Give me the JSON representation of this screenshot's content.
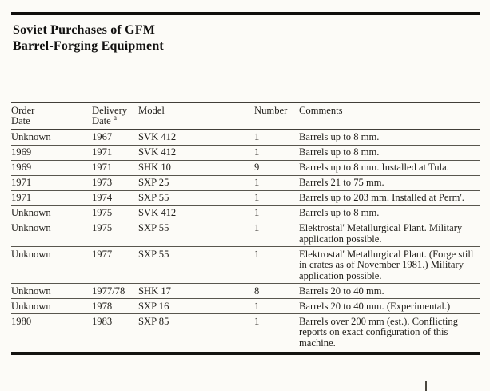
{
  "page": {
    "title_line1": "Soviet Purchases of GFM",
    "title_line2": "Barrel-Forging Equipment"
  },
  "table": {
    "headers": [
      {
        "key": "order-date",
        "lines": [
          "Order",
          "Date"
        ]
      },
      {
        "key": "delivery-date",
        "lines": [
          "Delivery",
          "Date"
        ],
        "superscript": "a"
      },
      {
        "key": "model",
        "lines": [
          "Model"
        ]
      },
      {
        "key": "number",
        "lines": [
          "Number"
        ]
      },
      {
        "key": "comments",
        "lines": [
          "Comments"
        ]
      }
    ],
    "rows": [
      {
        "order_date": "Unknown",
        "delivery_date": "1967",
        "model": "SVK 412",
        "number": "1",
        "comments": "Barrels up to 8 mm."
      },
      {
        "order_date": "1969",
        "delivery_date": "1971",
        "model": "SVK 412",
        "number": "1",
        "comments": "Barrels up to 8 mm."
      },
      {
        "order_date": "1969",
        "delivery_date": "1971",
        "model": "SHK 10",
        "number": "9",
        "comments": "Barrels up to 8 mm. Installed at Tula."
      },
      {
        "order_date": "1971",
        "delivery_date": "1973",
        "model": "SXP 25",
        "number": "1",
        "comments": "Barrels 21 to 75 mm."
      },
      {
        "order_date": "1971",
        "delivery_date": "1974",
        "model": "SXP 55",
        "number": "1",
        "comments": "Barrels up to 203 mm. Installed at Perm'."
      },
      {
        "order_date": "Unknown",
        "delivery_date": "1975",
        "model": "SVK 412",
        "number": "1",
        "comments": "Barrels up to 8 mm."
      },
      {
        "order_date": "Unknown",
        "delivery_date": "1975",
        "model": "SXP 55",
        "number": "1",
        "comments": "Elektrostal' Metallurgical Plant. Military application possible."
      },
      {
        "order_date": "Unknown",
        "delivery_date": "1977",
        "model": "SXP 55",
        "number": "1",
        "comments": "Elektrostal' Metallurgical Plant. (Forge still in crates as of November 1981.) Military application possible."
      },
      {
        "order_date": "Unknown",
        "delivery_date": "1977/78",
        "model": "SHK 17",
        "number": "8",
        "comments": "Barrels 20 to 40 mm."
      },
      {
        "order_date": "Unknown",
        "delivery_date": "1978",
        "model": "SXP 16",
        "number": "1",
        "comments": "Barrels 20 to 40 mm. (Experimental.)"
      },
      {
        "order_date": "1980",
        "delivery_date": "1983",
        "model": "SXP 85",
        "number": "1",
        "comments": "Barrels over 200 mm (est.). Conflicting reports on exact configuration of this machine."
      }
    ]
  },
  "colors": {
    "background": "#fcfbf7",
    "ink": "#201e1a",
    "title_ink": "#121110",
    "thick_rule": "#0f0e0c",
    "row_rule": "#59564e"
  }
}
